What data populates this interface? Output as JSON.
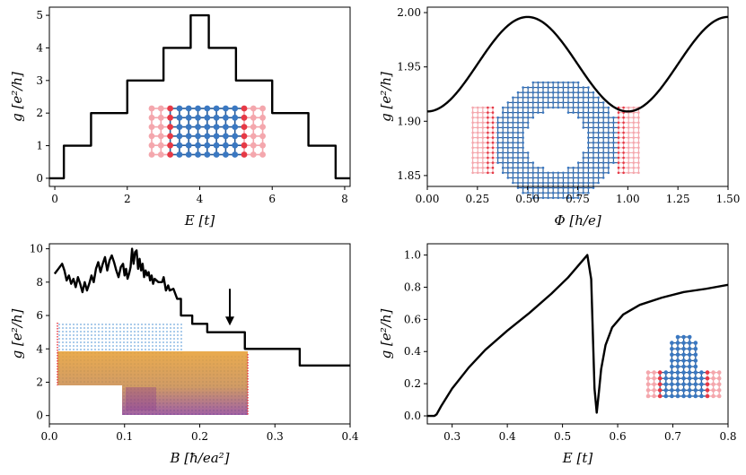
{
  "colors": {
    "curve": "#000000",
    "site_blue": "#3a78c2",
    "site_blue_edge": "#2a5a93",
    "lead_red": "#e63946",
    "lead_pink": "#f4a7ad",
    "dots_blue": "#6fa8dc",
    "warm_orange": "#e8a23a",
    "warm_purple": "#8a3a8c"
  },
  "chart_data": [
    {
      "name": "top-left",
      "type": "line",
      "subtype": "step",
      "xlabel": "E [t]",
      "ylabel": "g [e²/h]",
      "xlim": [
        -0.15,
        8.15
      ],
      "ylim": [
        -0.25,
        5.25
      ],
      "xticks": [
        0,
        2,
        4,
        6,
        8
      ],
      "xtick_labels": [
        "0",
        "2",
        "4",
        "6",
        "8"
      ],
      "yticks": [
        0,
        1,
        2,
        3,
        4,
        5
      ],
      "ytick_labels": [
        "0",
        "1",
        "2",
        "3",
        "4",
        "5"
      ],
      "x": [
        -0.15,
        0.25,
        0.25,
        1.0,
        1.0,
        2.0,
        2.0,
        3.0,
        3.0,
        3.75,
        3.75,
        4.25,
        4.25,
        5.0,
        5.0,
        6.0,
        6.0,
        7.0,
        7.0,
        7.75,
        7.75,
        8.15
      ],
      "y": [
        0,
        0,
        1,
        1,
        2,
        2,
        3,
        3,
        4,
        4,
        5,
        5,
        4,
        4,
        3,
        3,
        2,
        2,
        1,
        1,
        0,
        0
      ],
      "inset": "rectangle-lattice"
    },
    {
      "name": "top-right",
      "type": "line",
      "xlabel": "Φ [h/e]",
      "ylabel": "g [e²/h]",
      "xlim": [
        0,
        1.5
      ],
      "ylim": [
        1.84,
        2.005
      ],
      "xticks": [
        0,
        0.25,
        0.5,
        0.75,
        1.0,
        1.25,
        1.5
      ],
      "xtick_labels": [
        "0.00",
        "0.25",
        "0.50",
        "0.75",
        "1.00",
        "1.25",
        "1.50"
      ],
      "yticks": [
        1.85,
        1.9,
        1.95,
        2.0
      ],
      "ytick_labels": [
        "1.85",
        "1.90",
        "1.95",
        "2.00"
      ],
      "function": {
        "kind": "cosine",
        "mean": 1.9525,
        "amplitude": 0.0435,
        "period": 1.0,
        "phase_min_at": 0
      },
      "inset": "ring-lattice"
    },
    {
      "name": "bottom-left",
      "type": "line",
      "xlabel": "B [ħ/ea²]",
      "ylabel": "g [e²/h]",
      "xlim": [
        0,
        0.4
      ],
      "ylim": [
        -0.5,
        10.3
      ],
      "xticks": [
        0,
        0.1,
        0.2,
        0.3,
        0.4
      ],
      "xtick_labels": [
        "0.0",
        "0.1",
        "0.2",
        "0.3",
        "0.4"
      ],
      "yticks": [
        0,
        2,
        4,
        6,
        8,
        10
      ],
      "ytick_labels": [
        "0",
        "2",
        "4",
        "6",
        "8",
        "10"
      ],
      "x": [
        0.007,
        0.012,
        0.017,
        0.02,
        0.023,
        0.026,
        0.029,
        0.032,
        0.035,
        0.038,
        0.041,
        0.044,
        0.047,
        0.05,
        0.053,
        0.056,
        0.059,
        0.062,
        0.065,
        0.068,
        0.071,
        0.074,
        0.077,
        0.08,
        0.083,
        0.086,
        0.089,
        0.092,
        0.095,
        0.098,
        0.1,
        0.102,
        0.104,
        0.106,
        0.108,
        0.11,
        0.112,
        0.114,
        0.116,
        0.118,
        0.12,
        0.122,
        0.124,
        0.126,
        0.128,
        0.13,
        0.132,
        0.134,
        0.136,
        0.138,
        0.14,
        0.145,
        0.15,
        0.152,
        0.155,
        0.158,
        0.16,
        0.165,
        0.17,
        0.175,
        0.175,
        0.19,
        0.19,
        0.21,
        0.21,
        0.26,
        0.26,
        0.333,
        0.333,
        0.4
      ],
      "y": [
        8.5,
        8.8,
        9.1,
        8.7,
        8.1,
        8.4,
        7.9,
        8.2,
        7.7,
        8.3,
        7.9,
        7.4,
        8.0,
        7.5,
        7.9,
        8.4,
        8.0,
        8.8,
        9.2,
        8.6,
        9.1,
        9.5,
        8.7,
        9.3,
        9.6,
        9.2,
        8.7,
        8.3,
        8.9,
        9.1,
        8.4,
        8.8,
        8.2,
        8.5,
        8.9,
        10.0,
        9.1,
        9.8,
        9.9,
        8.8,
        9.4,
        8.7,
        9.1,
        8.3,
        8.7,
        8.4,
        8.6,
        8.1,
        8.4,
        7.9,
        8.2,
        8.0,
        8.0,
        8.3,
        7.5,
        7.8,
        7.5,
        7.6,
        7.0,
        7.0,
        6.0,
        6.0,
        5.5,
        5.5,
        5.0,
        5.0,
        4.0,
        4.0,
        3.0,
        3.0
      ],
      "annotation": {
        "type": "arrow",
        "x": 0.24,
        "y_from": 7.6,
        "y_to": 5.4
      },
      "inset": "density-map"
    },
    {
      "name": "bottom-right",
      "type": "line",
      "xlabel": "E [t]",
      "ylabel": "g [e²/h]",
      "xlim": [
        0.255,
        0.8
      ],
      "ylim": [
        -0.05,
        1.07
      ],
      "xticks": [
        0.3,
        0.4,
        0.5,
        0.6,
        0.7,
        0.8
      ],
      "xtick_labels": [
        "0.3",
        "0.4",
        "0.5",
        "0.6",
        "0.7",
        "0.8"
      ],
      "yticks": [
        0,
        0.2,
        0.4,
        0.6,
        0.8,
        1.0
      ],
      "ytick_labels": [
        "0.0",
        "0.2",
        "0.4",
        "0.6",
        "0.8",
        "1.0"
      ],
      "x": [
        0.255,
        0.268,
        0.272,
        0.28,
        0.3,
        0.33,
        0.36,
        0.4,
        0.44,
        0.48,
        0.51,
        0.53,
        0.545,
        0.552,
        0.558,
        0.562,
        0.566,
        0.57,
        0.578,
        0.59,
        0.61,
        0.64,
        0.68,
        0.72,
        0.76,
        0.8
      ],
      "y": [
        0.0,
        0.0,
        0.01,
        0.06,
        0.17,
        0.3,
        0.41,
        0.53,
        0.64,
        0.76,
        0.86,
        0.94,
        1.0,
        0.85,
        0.17,
        0.02,
        0.15,
        0.29,
        0.44,
        0.55,
        0.63,
        0.69,
        0.735,
        0.77,
        0.79,
        0.815
      ],
      "inset": "t-shaped-lattice"
    }
  ]
}
